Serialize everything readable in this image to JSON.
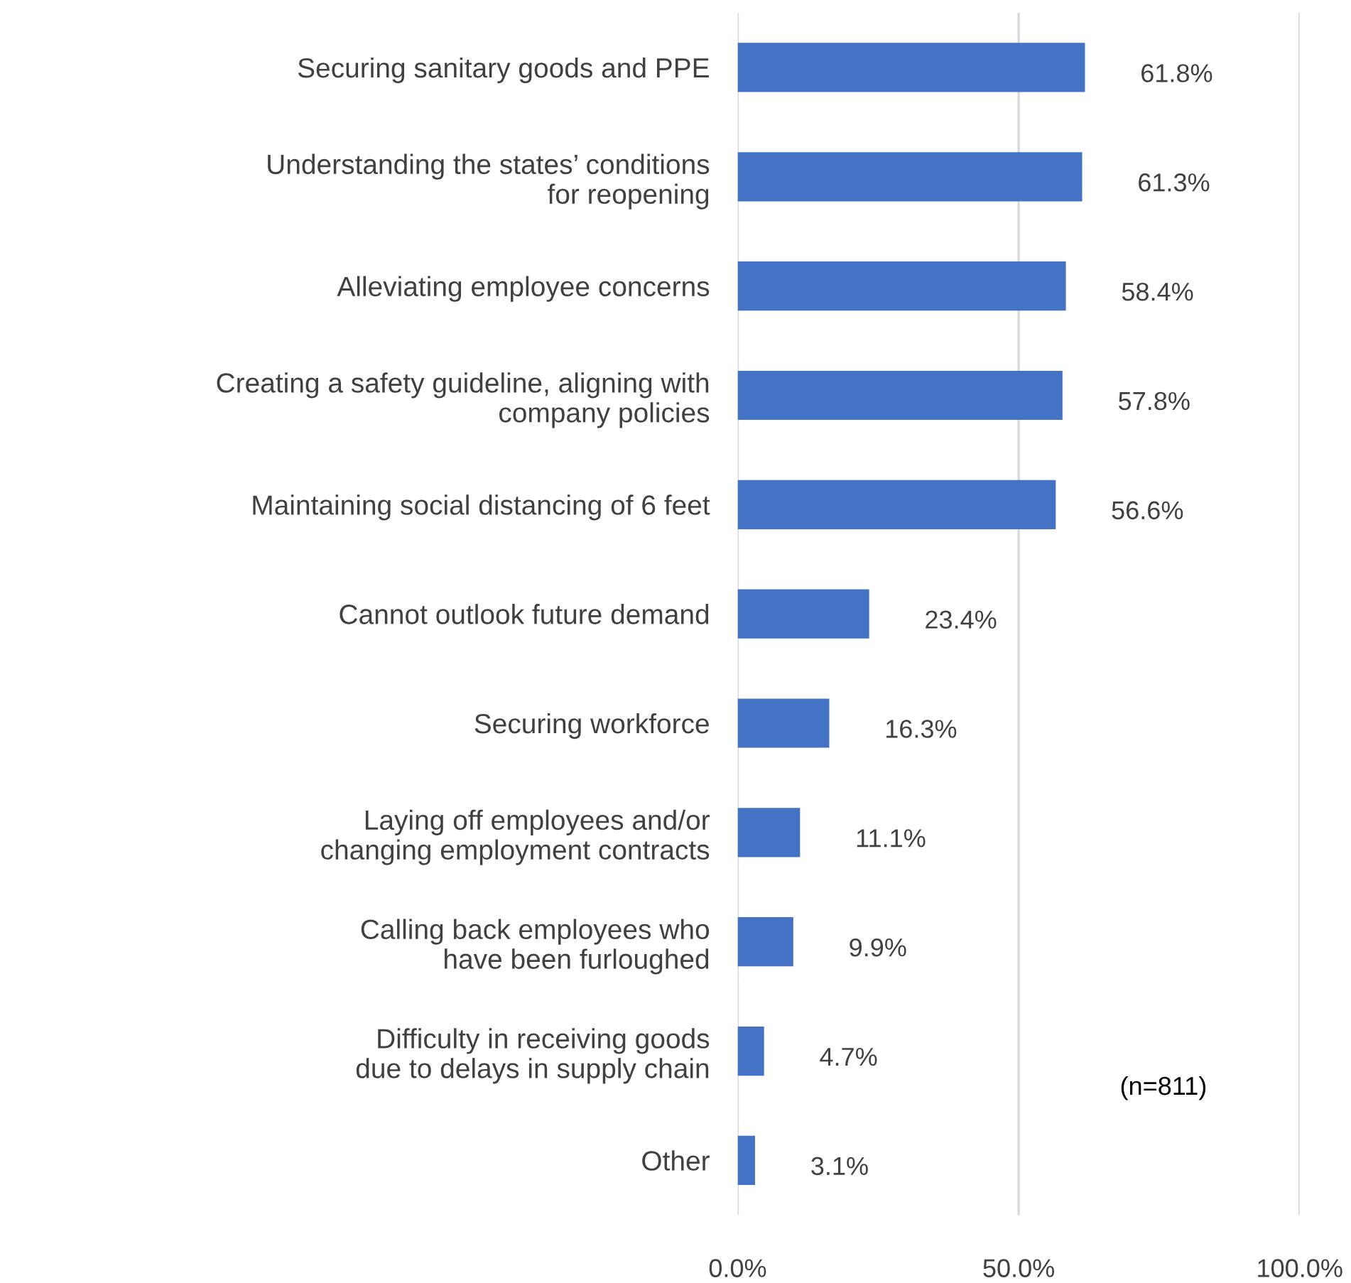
{
  "chart_data": {
    "type": "bar",
    "orientation": "horizontal",
    "categories": [
      "Securing sanitary goods and PPE",
      "Understanding the states’ conditions\nfor reopening",
      "Alleviating employee concerns",
      "Creating a safety guideline, aligning with\ncompany policies",
      "Maintaining social distancing of 6 feet",
      "Cannot outlook future demand",
      "Securing workforce",
      "Laying off employees and/or\nchanging employment contracts",
      "Calling back employees who\nhave been furloughed",
      "Difficulty in receiving goods\ndue to delays in supply chain",
      "Other"
    ],
    "values": [
      61.8,
      61.3,
      58.4,
      57.8,
      56.6,
      23.4,
      16.3,
      11.1,
      9.9,
      4.7,
      3.1
    ],
    "value_labels": [
      "61.8%",
      "61.3%",
      "58.4%",
      "57.8%",
      "56.6%",
      "23.4%",
      "16.3%",
      "11.1%",
      "9.9%",
      "4.7%",
      "3.1%"
    ],
    "color": "#4472c4",
    "xlim": [
      0,
      100
    ],
    "xticks": [
      {
        "value": 0,
        "label": "0.0%"
      },
      {
        "value": 50,
        "label": "50.0%"
      },
      {
        "value": 100,
        "label": "100.0%"
      }
    ],
    "grid": "x",
    "annotations": [
      "(n=811)"
    ]
  }
}
